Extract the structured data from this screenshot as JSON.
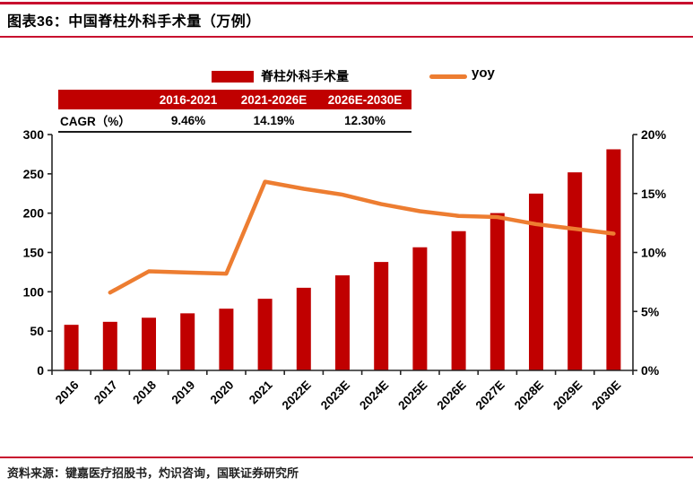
{
  "title": {
    "label": "图表36：中国脊柱外科手术量（万例）"
  },
  "legend": [
    {
      "name": "脊柱外科手术量",
      "type": "bar",
      "color": "#C00000"
    },
    {
      "name": "yoy",
      "type": "line",
      "color": "#ED7D31"
    }
  ],
  "cagr_table": {
    "headers": [
      "",
      "2016-2021",
      "2021-2026E",
      "2026E-2030E"
    ],
    "row_label": "CAGR（%）",
    "row_values": [
      "9.46%",
      "14.19%",
      "12.30%"
    ],
    "header_bg": "#C00000"
  },
  "chart_data": {
    "type": "bar+line combo",
    "categories": [
      "2016",
      "2017",
      "2018",
      "2019",
      "2020",
      "2021",
      "2022E",
      "2023E",
      "2024E",
      "2025E",
      "2026E",
      "2027E",
      "2028E",
      "2029E",
      "2030E"
    ],
    "series": [
      {
        "name": "脊柱外科手术量",
        "type": "bar",
        "axis": "left",
        "color": "#C00000",
        "values": [
          58.0,
          61.8,
          67.0,
          72.6,
          78.5,
          91.1,
          105.1,
          120.9,
          137.9,
          156.6,
          177.1,
          200.1,
          224.9,
          251.9,
          281.2
        ]
      },
      {
        "name": "yoy",
        "type": "line",
        "axis": "right",
        "color": "#ED7D31",
        "values": [
          null,
          6.6,
          8.4,
          8.3,
          8.2,
          16.0,
          15.4,
          14.9,
          14.1,
          13.5,
          13.1,
          13.0,
          12.4,
          12.0,
          11.6
        ]
      }
    ],
    "left_axis": {
      "min": 0,
      "max": 300,
      "step": 50,
      "labels": [
        "0",
        "50",
        "100",
        "150",
        "200",
        "250",
        "300"
      ]
    },
    "right_axis": {
      "min": 0,
      "max": 20,
      "step": 5,
      "labels": [
        "0%",
        "5%",
        "10%",
        "15%",
        "20%"
      ]
    },
    "grid": false,
    "legend_position": "top"
  },
  "footer": {
    "source": "资料来源：键嘉医疗招股书，灼识咨询，国联证券研究所"
  },
  "colors": {
    "rule_red": "#C8102E",
    "bar_red": "#C00000",
    "line_orange": "#ED7D31",
    "axis": "#262626"
  }
}
